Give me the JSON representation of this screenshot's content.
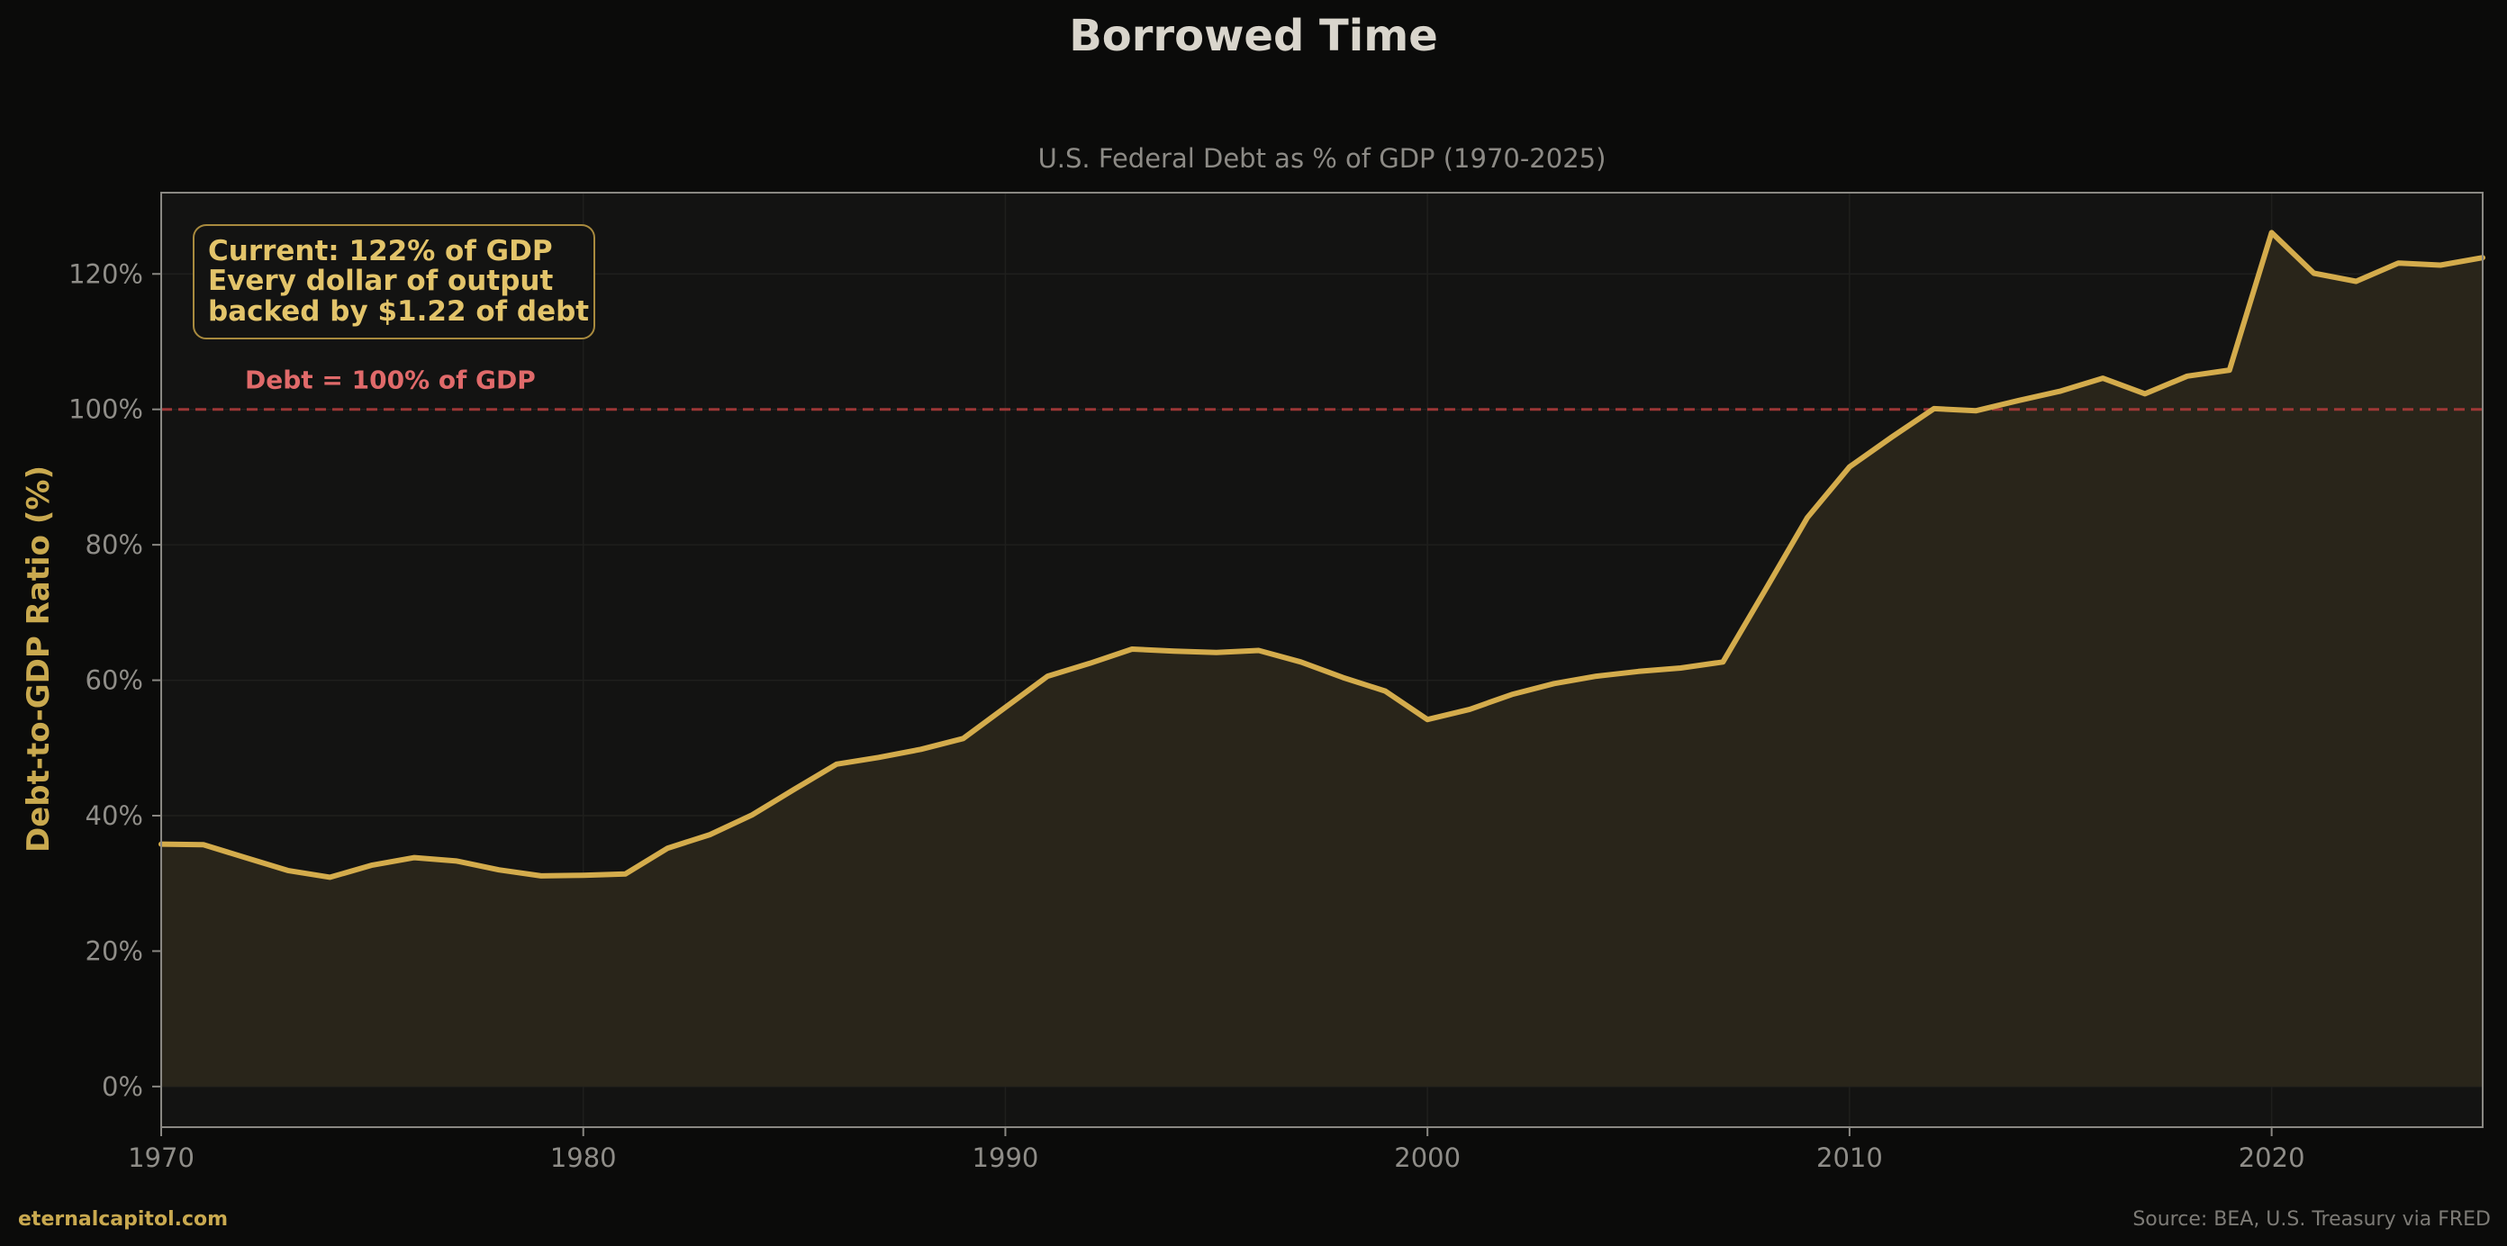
{
  "title": "Borrowed Time",
  "footer": {
    "brand": "eternalcapitol.com",
    "source": "Source: BEA, U.S. Treasury via FRED"
  },
  "colors": {
    "background": "#0b0b0a",
    "plot_background": "#131312",
    "line": "#d4ac4c",
    "fill": "#29251a",
    "reference_line": "#b43c3c",
    "reference_text": "#e06a6a",
    "annotation_text": "#e3c46a",
    "annotation_border": "#a88a3e"
  },
  "chart_data": {
    "type": "area",
    "subtitle": "U.S. Federal Debt as % of GDP (1970-2025)",
    "xlabel": "",
    "ylabel": "Debt-to-GDP Ratio (%)",
    "xlim": [
      1970,
      2025
    ],
    "ylim": [
      -6,
      132
    ],
    "x_ticks": [
      1970,
      1980,
      1990,
      2000,
      2010,
      2020
    ],
    "y_ticks": [
      0,
      20,
      40,
      60,
      80,
      100,
      120
    ],
    "y_tick_labels": [
      "0%",
      "20%",
      "40%",
      "60%",
      "80%",
      "100%",
      "120%"
    ],
    "grid": true,
    "reference_line": {
      "y": 100,
      "label": "Debt = 100% of GDP"
    },
    "annotation": {
      "lines": [
        "Current: 122% of GDP",
        "Every dollar of output",
        "backed by $1.22 of debt"
      ],
      "position": "top-left"
    },
    "series": [
      {
        "x": [
          1970,
          1971,
          1972,
          1973,
          1974,
          1975,
          1976,
          1977,
          1978,
          1979,
          1980,
          1981,
          1982,
          1983,
          1984,
          1985,
          1986,
          1987,
          1988,
          1989,
          1990,
          1991,
          1992,
          1993,
          1994,
          1995,
          1996,
          1997,
          1998,
          1999,
          2000,
          2001,
          2002,
          2003,
          2004,
          2005,
          2006,
          2007,
          2008,
          2009,
          2010,
          2011,
          2012,
          2013,
          2014,
          2015,
          2016,
          2017,
          2018,
          2019,
          2020,
          2021,
          2022,
          2023,
          2024,
          2025
        ],
        "values": [
          35.8,
          35.7,
          33.8,
          31.9,
          30.9,
          32.7,
          33.8,
          33.3,
          32.0,
          31.1,
          31.2,
          31.4,
          35.2,
          37.2,
          40.1,
          43.9,
          47.6,
          48.6,
          49.8,
          51.4,
          56.0,
          60.6,
          62.5,
          64.6,
          64.3,
          64.1,
          64.4,
          62.7,
          60.4,
          58.4,
          54.2,
          55.7,
          57.9,
          59.5,
          60.6,
          61.3,
          61.8,
          62.7,
          73.3,
          84.0,
          91.5,
          95.9,
          100.1,
          99.8,
          101.3,
          102.7,
          104.6,
          102.3,
          104.9,
          105.8,
          126.1,
          120.1,
          118.9,
          121.6,
          121.3,
          122.4
        ]
      }
    ]
  }
}
